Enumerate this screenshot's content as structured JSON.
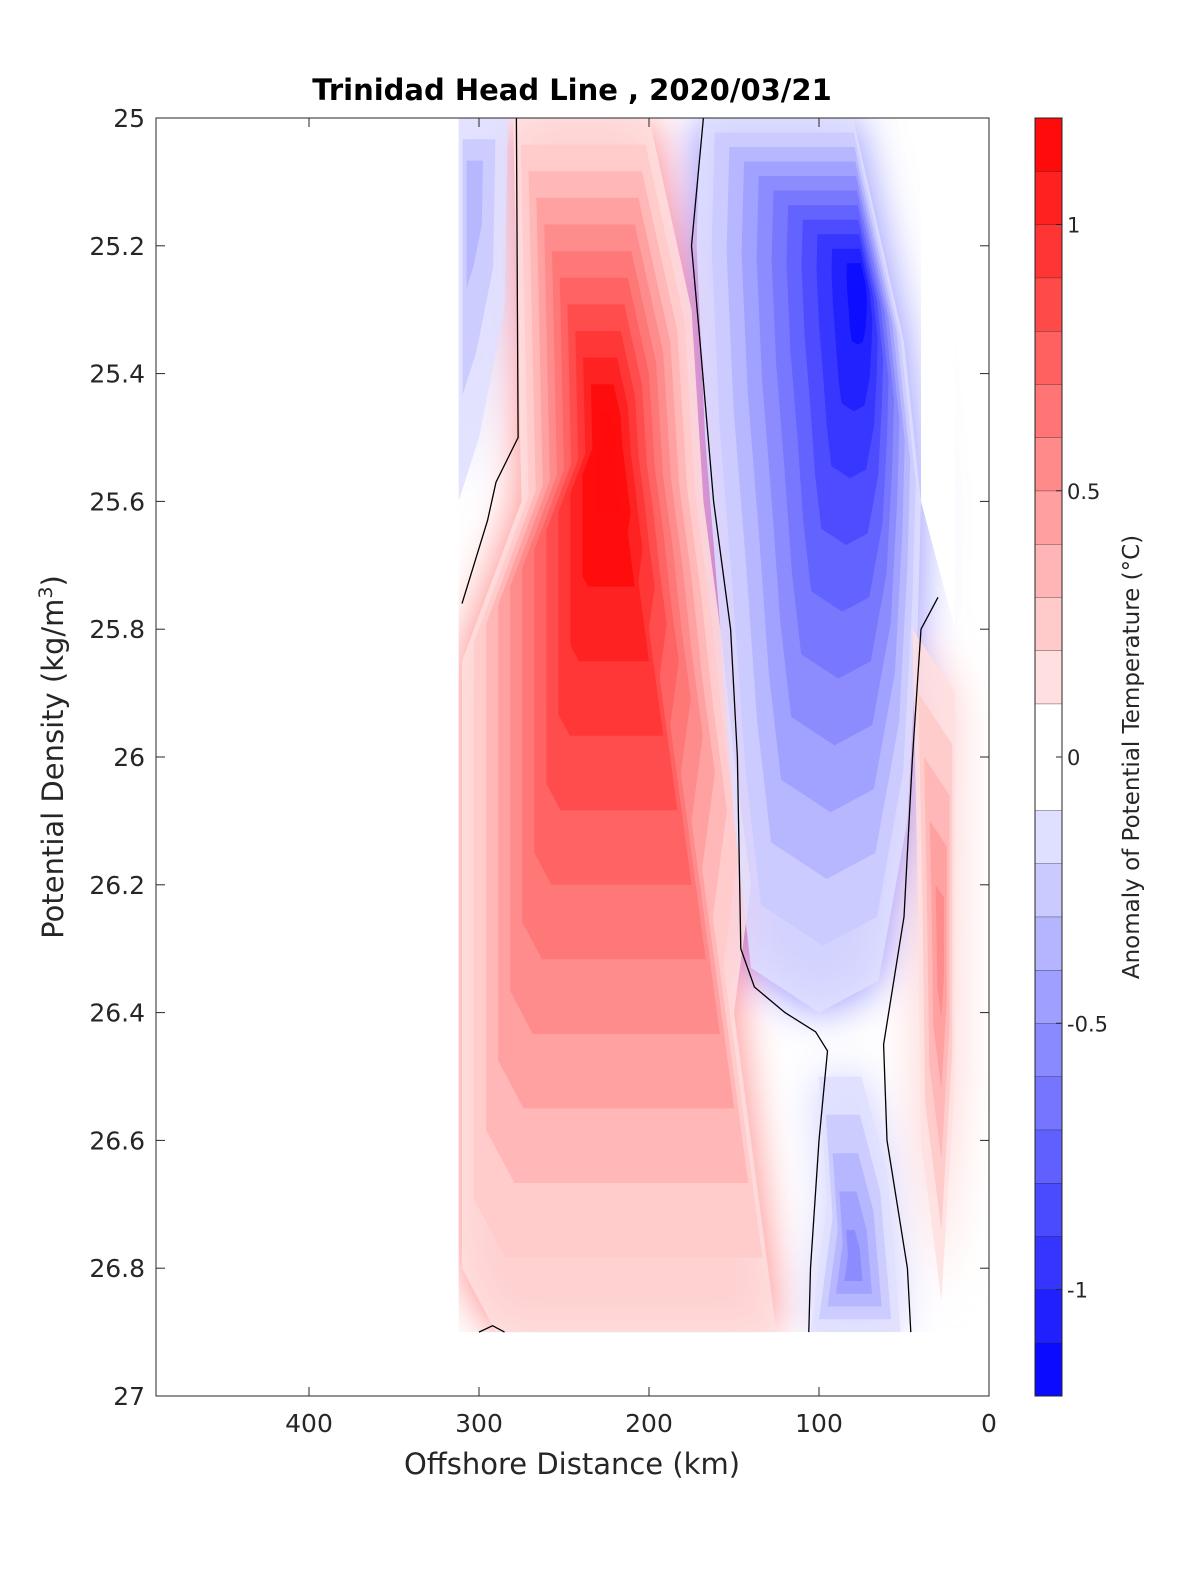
{
  "chart_data": {
    "type": "heatmap",
    "subtype": "filled-contour",
    "title": "Trinidad Head Line , 2020/03/21",
    "xlabel": "Offshore Distance (km)",
    "ylabel": "Potential Density (kg/m",
    "ylabel_superscript": "3",
    "ylabel_suffix": ")",
    "colorbar_label": "Anomaly of Potential Temperature (°C)",
    "x_reversed": true,
    "y_reversed": true,
    "xlim": [
      0,
      490
    ],
    "ylim": [
      25,
      27
    ],
    "xticks": [
      400,
      300,
      200,
      100,
      0
    ],
    "xtick_labels": [
      "400",
      "300",
      "200",
      "100",
      "0"
    ],
    "yticks": [
      25,
      25.2,
      25.4,
      25.6,
      25.8,
      26,
      26.2,
      26.4,
      26.6,
      26.8,
      27
    ],
    "ytick_labels": [
      "25",
      "25.2",
      "25.4",
      "25.6",
      "25.8",
      "26",
      "26.2",
      "26.4",
      "26.6",
      "26.8",
      "27"
    ],
    "clim": [
      -1.2,
      1.2
    ],
    "contour_levels": [
      -1.2,
      -1.1,
      -1.0,
      -0.9,
      -0.8,
      -0.7,
      -0.6,
      -0.5,
      -0.4,
      -0.3,
      -0.2,
      -0.1,
      0.1,
      0.2,
      0.3,
      0.4,
      0.5,
      0.6,
      0.7,
      0.8,
      0.9,
      1.0,
      1.1,
      1.2
    ],
    "colorbar_ticks": [
      -1,
      -0.5,
      0,
      0.5,
      1
    ],
    "colorbar_tick_labels": [
      "-1",
      "-0.5",
      "0",
      "0.5",
      "1"
    ],
    "zero_contour_lines": [
      [
        [
          278,
          25.0
        ],
        [
          277,
          25.5
        ],
        [
          290,
          25.57
        ],
        [
          295,
          25.63
        ],
        [
          310,
          25.76
        ]
      ],
      [
        [
          168,
          25.0
        ],
        [
          175,
          25.2
        ],
        [
          170,
          25.35
        ],
        [
          162,
          25.6
        ],
        [
          152,
          25.8
        ],
        [
          148,
          26.0
        ],
        [
          146,
          26.3
        ],
        [
          138,
          26.36
        ],
        [
          120,
          26.4
        ],
        [
          102,
          26.43
        ],
        [
          95,
          26.46
        ],
        [
          100,
          26.6
        ],
        [
          105,
          26.8
        ],
        [
          106,
          26.9
        ]
      ],
      [
        [
          30,
          25.75
        ],
        [
          40,
          25.8
        ],
        [
          45,
          26.0
        ],
        [
          50,
          26.25
        ],
        [
          62,
          26.45
        ],
        [
          60,
          26.6
        ],
        [
          48,
          26.8
        ],
        [
          46,
          26.9
        ]
      ],
      [
        [
          300,
          26.9
        ],
        [
          292,
          26.89
        ],
        [
          285,
          26.9
        ]
      ]
    ],
    "anomaly_regions": [
      {
        "name": "warm core",
        "polygon": [
          [
            280,
            25.0
          ],
          [
            200,
            25.0
          ],
          [
            175,
            25.3
          ],
          [
            168,
            25.6
          ],
          [
            158,
            25.8
          ],
          [
            150,
            26.0
          ],
          [
            140,
            26.2
          ],
          [
            150,
            26.4
          ],
          [
            140,
            26.6
          ],
          [
            125,
            26.9
          ],
          [
            290,
            26.9
          ],
          [
            310,
            26.8
          ],
          [
            310,
            25.85
          ],
          [
            275,
            25.6
          ]
        ],
        "peak": [
          225,
          25.5
        ],
        "peak_value": 1.2
      },
      {
        "name": "cold nearshore",
        "polygon": [
          [
            170,
            25.0
          ],
          [
            80,
            25.0
          ],
          [
            50,
            25.35
          ],
          [
            40,
            25.6
          ],
          [
            42,
            25.8
          ],
          [
            48,
            26.1
          ],
          [
            65,
            26.35
          ],
          [
            100,
            26.4
          ],
          [
            140,
            26.33
          ],
          [
            150,
            26.1
          ],
          [
            158,
            25.8
          ],
          [
            167,
            25.5
          ],
          [
            172,
            25.2
          ]
        ],
        "peak": [
          75,
          25.25
        ],
        "peak_value": -1.1
      },
      {
        "name": "cold deep patch",
        "polygon": [
          [
            100,
            26.5
          ],
          [
            75,
            26.5
          ],
          [
            60,
            26.65
          ],
          [
            52,
            26.9
          ],
          [
            105,
            26.9
          ],
          [
            95,
            26.7
          ]
        ],
        "peak": [
          80,
          26.8
        ],
        "peak_value": -0.5
      },
      {
        "name": "warm nearshore",
        "polygon": [
          [
            45,
            25.8
          ],
          [
            20,
            25.9
          ],
          [
            20,
            26.5
          ],
          [
            28,
            26.85
          ],
          [
            40,
            26.6
          ],
          [
            42,
            26.2
          ]
        ],
        "peak": [
          28,
          26.3
        ],
        "peak_value": 0.5
      },
      {
        "name": "cold offshore",
        "polygon": [
          [
            312,
            25.0
          ],
          [
            283,
            25.0
          ],
          [
            285,
            25.3
          ],
          [
            300,
            25.5
          ],
          [
            312,
            25.6
          ]
        ],
        "peak": [
          305,
          25.1
        ],
        "peak_value": -0.3
      }
    ],
    "no_data_regions": [
      {
        "polygon": [
          [
            490,
            25.0
          ],
          [
            312,
            25.0
          ],
          [
            312,
            26.9
          ],
          [
            490,
            26.9
          ]
        ]
      },
      {
        "polygon": [
          [
            490,
            26.9
          ],
          [
            0,
            26.9
          ],
          [
            0,
            27.0
          ],
          [
            490,
            27.0
          ]
        ]
      },
      {
        "polygon": [
          [
            20,
            25.0
          ],
          [
            40,
            25.0
          ],
          [
            40,
            25.6
          ],
          [
            20,
            25.8
          ]
        ]
      }
    ]
  },
  "colors": {
    "negative_max": "#0000ff",
    "zero": "#ffffff",
    "positive_max": "#ff0000",
    "contour_line": "#000000",
    "axes": "#262626"
  }
}
